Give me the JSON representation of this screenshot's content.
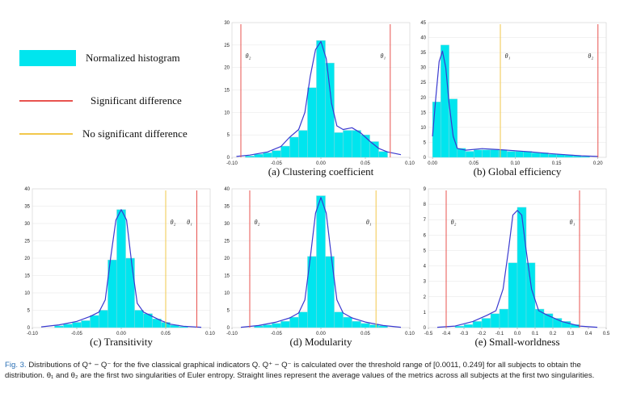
{
  "legend": {
    "histogram_label": "Normalized histogram",
    "significant_label": "Significant difference",
    "nosig_label": "No significant difference",
    "histogram_color": "#00e5ee",
    "significant_color": "#e8534f",
    "nosig_color": "#f2c84b",
    "curve_color": "#3a3ad0"
  },
  "caption": {
    "lead": "Fig. 3.",
    "text": "Distributions of Q⁺ − Q⁻ for the five classical graphical indicators Q. Q⁺ − Q⁻ is calculated over the threshold range of [0.0011, 0.249] for all subjects to obtain the distribution. θ₁ and θ₂ are the first two singularities of Euler entropy. Straight lines represent the average values of the metrics across all subjects at the first two singularities."
  },
  "chart_data": [
    {
      "type": "bar",
      "title": "(a) Clustering coefficient",
      "xlim": [
        -0.1,
        0.1
      ],
      "ylim": [
        0,
        30
      ],
      "xticks": [
        "-0.10",
        "-0.05",
        "0.00",
        "0.05",
        "0.10"
      ],
      "xtick_values": [
        -0.1,
        -0.05,
        0.0,
        0.05,
        0.1
      ],
      "yticks": [
        0,
        5,
        10,
        15,
        20,
        25,
        30
      ],
      "bin_edges": [
        -0.085,
        -0.075,
        -0.065,
        -0.055,
        -0.045,
        -0.035,
        -0.025,
        -0.015,
        -0.005,
        0.005,
        0.015,
        0.025,
        0.035,
        0.045,
        0.055,
        0.065,
        0.075
      ],
      "values": [
        0.3,
        0.7,
        1.0,
        1.5,
        2.5,
        4.5,
        6.0,
        15.5,
        26,
        21,
        5.5,
        6.0,
        6.0,
        5.0,
        3.5,
        1.3
      ],
      "curve": [
        [
          -0.095,
          0.2
        ],
        [
          -0.08,
          0.5
        ],
        [
          -0.06,
          1.2
        ],
        [
          -0.045,
          2.4
        ],
        [
          -0.035,
          4.5
        ],
        [
          -0.025,
          6.2
        ],
        [
          -0.018,
          10
        ],
        [
          -0.012,
          18
        ],
        [
          -0.006,
          24
        ],
        [
          0,
          25.8
        ],
        [
          0.006,
          22
        ],
        [
          0.012,
          12
        ],
        [
          0.018,
          7
        ],
        [
          0.025,
          6.2
        ],
        [
          0.035,
          6.6
        ],
        [
          0.045,
          5.4
        ],
        [
          0.055,
          3.6
        ],
        [
          0.065,
          2.0
        ],
        [
          0.075,
          1.2
        ],
        [
          0.09,
          0.6
        ]
      ],
      "vlines": [
        {
          "x": -0.09,
          "label": "θ₂",
          "kind": "significant"
        },
        {
          "x": 0.078,
          "label": "θ₁",
          "kind": "significant"
        }
      ]
    },
    {
      "type": "bar",
      "title": "(b) Global efficiency",
      "xlim": [
        -0.005,
        0.21
      ],
      "ylim": [
        0,
        45
      ],
      "xticks": [
        "0.00",
        "0.05",
        "0.10",
        "0.15",
        "0.20"
      ],
      "xtick_values": [
        0.0,
        0.05,
        0.1,
        0.15,
        0.2
      ],
      "yticks": [
        0,
        5,
        10,
        15,
        20,
        25,
        30,
        35,
        40,
        45
      ],
      "bin_edges": [
        0.0,
        0.01,
        0.02,
        0.03,
        0.04,
        0.05,
        0.06,
        0.07,
        0.08,
        0.09,
        0.1,
        0.11,
        0.12,
        0.13,
        0.14,
        0.15,
        0.16,
        0.17,
        0.18,
        0.19
      ],
      "values": [
        18.5,
        37.5,
        19.5,
        3.0,
        2.0,
        2.5,
        2.5,
        2.5,
        2.5,
        2.0,
        2.0,
        2.0,
        1.5,
        1.5,
        1.0,
        1.0,
        0.8,
        0.5,
        0.3
      ],
      "curve": [
        [
          0,
          7
        ],
        [
          0.004,
          20
        ],
        [
          0.008,
          32
        ],
        [
          0.012,
          35.5
        ],
        [
          0.016,
          30
        ],
        [
          0.02,
          18
        ],
        [
          0.025,
          7
        ],
        [
          0.03,
          3
        ],
        [
          0.04,
          2.4
        ],
        [
          0.06,
          2.9
        ],
        [
          0.08,
          2.6
        ],
        [
          0.1,
          2.2
        ],
        [
          0.12,
          1.8
        ],
        [
          0.14,
          1.3
        ],
        [
          0.16,
          0.9
        ],
        [
          0.18,
          0.5
        ],
        [
          0.2,
          0.3
        ]
      ],
      "vlines": [
        {
          "x": 0.082,
          "label": "θ₁",
          "kind": "nosig"
        },
        {
          "x": 0.2,
          "label": "θ₂",
          "kind": "significant"
        }
      ]
    },
    {
      "type": "bar",
      "title": "(c) Transitivity",
      "xlim": [
        -0.1,
        0.1
      ],
      "ylim": [
        0,
        40
      ],
      "xticks": [
        "-0.10",
        "-0.05",
        "0.00",
        "0.05",
        "0.10"
      ],
      "xtick_values": [
        -0.1,
        -0.05,
        0.0,
        0.05,
        0.1
      ],
      "yticks": [
        0,
        5,
        10,
        15,
        20,
        25,
        30,
        35,
        40
      ],
      "bin_edges": [
        -0.075,
        -0.065,
        -0.055,
        -0.045,
        -0.035,
        -0.025,
        -0.015,
        -0.005,
        0.005,
        0.015,
        0.025,
        0.035,
        0.045,
        0.055,
        0.065,
        0.075
      ],
      "values": [
        0.5,
        1.0,
        1.5,
        2.0,
        3.5,
        5.0,
        19.5,
        34,
        20,
        5.0,
        4.0,
        2.5,
        1.5,
        0.7,
        0.3
      ],
      "curve": [
        [
          -0.09,
          0.2
        ],
        [
          -0.07,
          0.8
        ],
        [
          -0.05,
          1.8
        ],
        [
          -0.035,
          3.2
        ],
        [
          -0.025,
          4.5
        ],
        [
          -0.018,
          8
        ],
        [
          -0.012,
          20
        ],
        [
          -0.006,
          31
        ],
        [
          0,
          34
        ],
        [
          0.006,
          31
        ],
        [
          0.012,
          18
        ],
        [
          0.018,
          7
        ],
        [
          0.025,
          4.5
        ],
        [
          0.035,
          3.2
        ],
        [
          0.045,
          2.0
        ],
        [
          0.055,
          1.0
        ],
        [
          0.07,
          0.4
        ],
        [
          0.09,
          0.1
        ]
      ],
      "vlines": [
        {
          "x": 0.05,
          "label": "θ₂",
          "kind": "nosig"
        },
        {
          "x": 0.085,
          "label": "θ₁",
          "kind": "significant"
        }
      ]
    },
    {
      "type": "bar",
      "title": "(d) Modularity",
      "xlim": [
        -0.1,
        0.1
      ],
      "ylim": [
        0,
        40
      ],
      "xticks": [
        "-0.10",
        "-0.05",
        "0.00",
        "0.05",
        "0.10"
      ],
      "xtick_values": [
        -0.1,
        -0.05,
        0.0,
        0.05,
        0.1
      ],
      "yticks": [
        0,
        5,
        10,
        15,
        20,
        25,
        30,
        35,
        40
      ],
      "bin_edges": [
        -0.075,
        -0.065,
        -0.055,
        -0.045,
        -0.035,
        -0.025,
        -0.015,
        -0.005,
        0.005,
        0.015,
        0.025,
        0.035,
        0.045,
        0.055,
        0.065,
        0.075
      ],
      "values": [
        0.5,
        0.8,
        1.2,
        1.8,
        3.0,
        4.5,
        20.5,
        38,
        20.5,
        4.5,
        3.0,
        1.8,
        1.2,
        0.8,
        0.5
      ],
      "curve": [
        [
          -0.09,
          0.1
        ],
        [
          -0.07,
          0.6
        ],
        [
          -0.05,
          1.6
        ],
        [
          -0.035,
          2.8
        ],
        [
          -0.025,
          4.2
        ],
        [
          -0.018,
          8
        ],
        [
          -0.012,
          20
        ],
        [
          -0.006,
          33
        ],
        [
          0,
          37.5
        ],
        [
          0.006,
          33
        ],
        [
          0.012,
          20
        ],
        [
          0.018,
          8
        ],
        [
          0.025,
          4.2
        ],
        [
          0.035,
          2.8
        ],
        [
          0.05,
          1.6
        ],
        [
          0.07,
          0.6
        ],
        [
          0.09,
          0.1
        ]
      ],
      "vlines": [
        {
          "x": -0.08,
          "label": "θ₂",
          "kind": "significant"
        },
        {
          "x": 0.062,
          "label": "θ₁",
          "kind": "nosig"
        }
      ]
    },
    {
      "type": "bar",
      "title": "(e) Small-worldness",
      "xlim": [
        -0.5,
        0.5
      ],
      "ylim": [
        0,
        9
      ],
      "xticks": [
        "-0.5",
        "-0.4",
        "-0.3",
        "-0.2",
        "-0.1",
        "0.0",
        "0.1",
        "0.2",
        "0.3",
        "0.4",
        "0.5"
      ],
      "xtick_values": [
        -0.5,
        -0.4,
        -0.3,
        -0.2,
        -0.1,
        0.0,
        0.1,
        0.2,
        0.3,
        0.4,
        0.5
      ],
      "yticks": [
        0,
        1,
        2,
        3,
        4,
        5,
        6,
        7,
        8,
        9
      ],
      "bin_edges": [
        -0.35,
        -0.3,
        -0.25,
        -0.2,
        -0.15,
        -0.1,
        -0.05,
        0.0,
        0.05,
        0.1,
        0.15,
        0.2,
        0.25,
        0.3,
        0.35
      ],
      "values": [
        0.1,
        0.2,
        0.4,
        0.6,
        0.9,
        1.2,
        4.2,
        7.8,
        4.2,
        1.2,
        0.9,
        0.6,
        0.4,
        0.2
      ],
      "curve": [
        [
          -0.45,
          0.02
        ],
        [
          -0.35,
          0.1
        ],
        [
          -0.25,
          0.4
        ],
        [
          -0.17,
          0.8
        ],
        [
          -0.12,
          1.1
        ],
        [
          -0.08,
          2.5
        ],
        [
          -0.05,
          5
        ],
        [
          -0.025,
          7.3
        ],
        [
          0,
          7.6
        ],
        [
          0.025,
          7.3
        ],
        [
          0.05,
          5
        ],
        [
          0.08,
          2.5
        ],
        [
          0.12,
          1.1
        ],
        [
          0.17,
          0.8
        ],
        [
          0.25,
          0.4
        ],
        [
          0.35,
          0.1
        ],
        [
          0.45,
          0.02
        ]
      ],
      "vlines": [
        {
          "x": -0.4,
          "label": "θ₂",
          "kind": "significant"
        },
        {
          "x": 0.35,
          "label": "θ₁",
          "kind": "significant"
        }
      ]
    }
  ]
}
